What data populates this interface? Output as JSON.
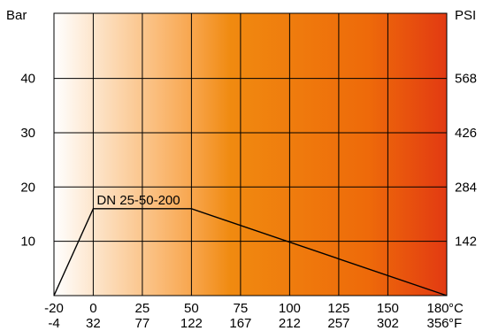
{
  "chart_data": {
    "type": "line",
    "title": "",
    "series": [
      {
        "name": "DN 25-50-200",
        "x": [
          -20,
          0,
          50,
          180
        ],
        "y": [
          0,
          16,
          16,
          0
        ]
      }
    ],
    "x_unit": "°C",
    "x2_unit": "°F",
    "y_unit": "Bar",
    "y2_unit": "PSI",
    "x_ticks": [
      {
        "c": -20,
        "label": "-20",
        "label2": "-4"
      },
      {
        "c": 0,
        "label": "0",
        "label2": "32"
      },
      {
        "c": 25,
        "label": "25",
        "label2": "77"
      },
      {
        "c": 50,
        "label": "50",
        "label2": "122"
      },
      {
        "c": 75,
        "label": "75",
        "label2": "167"
      },
      {
        "c": 100,
        "label": "100",
        "label2": "212"
      },
      {
        "c": 125,
        "label": "125",
        "label2": "257"
      },
      {
        "c": 150,
        "label": "150",
        "label2": "302"
      },
      {
        "c": 180,
        "label": "180",
        "label2": "356"
      }
    ],
    "y_ticks": [
      {
        "v": 10,
        "label": "10",
        "label2": "142"
      },
      {
        "v": 20,
        "label": "20",
        "label2": "284"
      },
      {
        "v": 30,
        "label": "30",
        "label2": "426"
      },
      {
        "v": 40,
        "label": "40",
        "label2": "568"
      }
    ],
    "xlim": [
      -20,
      180
    ],
    "ylim": [
      0,
      52
    ],
    "grid": true,
    "background_gradient": [
      "#ffffff",
      "#f8a64e",
      "#f08a10",
      "#ee6a0a",
      "#e23a12"
    ]
  }
}
